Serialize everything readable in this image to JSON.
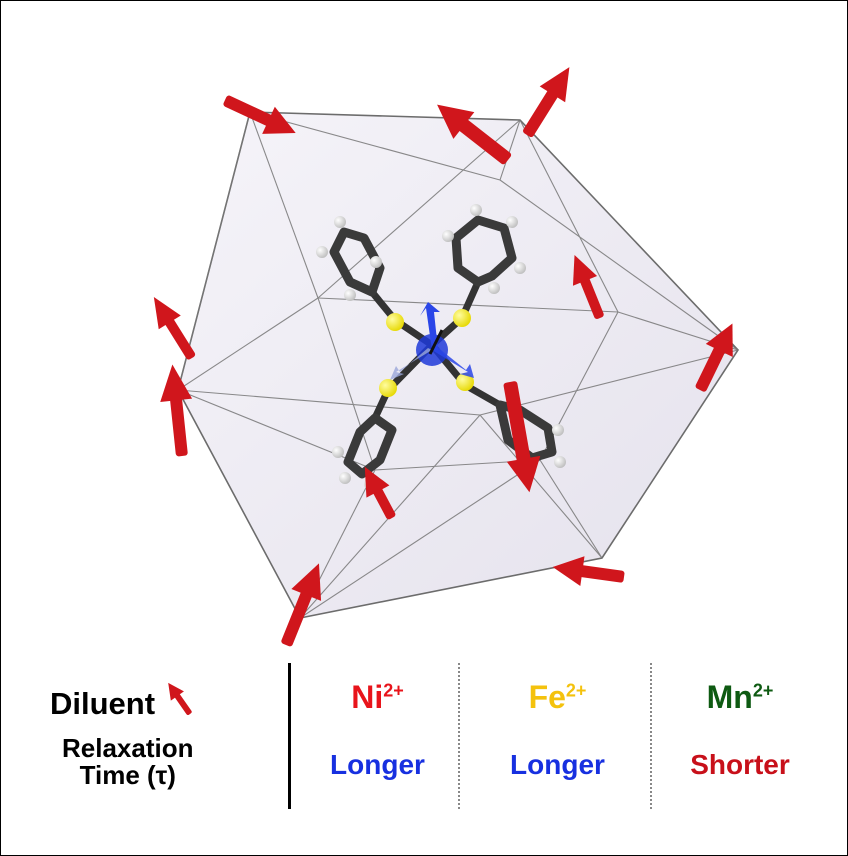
{
  "legend": {
    "diluent_label": "Diluent",
    "relaxation_line1": "Relaxation",
    "relaxation_line2": "Time (τ)",
    "columns": [
      {
        "ion": "Ni",
        "charge": "2+",
        "ion_color": "#e8141b",
        "time": "Longer",
        "time_color": "#1730e0"
      },
      {
        "ion": "Fe",
        "charge": "2+",
        "ion_color": "#f4c20d",
        "time": "Longer",
        "time_color": "#1730e0"
      },
      {
        "ion": "Mn",
        "charge": "2+",
        "ion_color": "#0e5a12",
        "time": "Shorter",
        "time_color": "#c8101a"
      }
    ]
  },
  "colors": {
    "spin_arrow": "#d0161c",
    "central_spin": "#1e3ad8",
    "sulfur": "#f2ea1a",
    "carbon": "#4a4a4a",
    "hydrogen": "#e6e6e6",
    "cage_fill": "#e7e3ef"
  }
}
